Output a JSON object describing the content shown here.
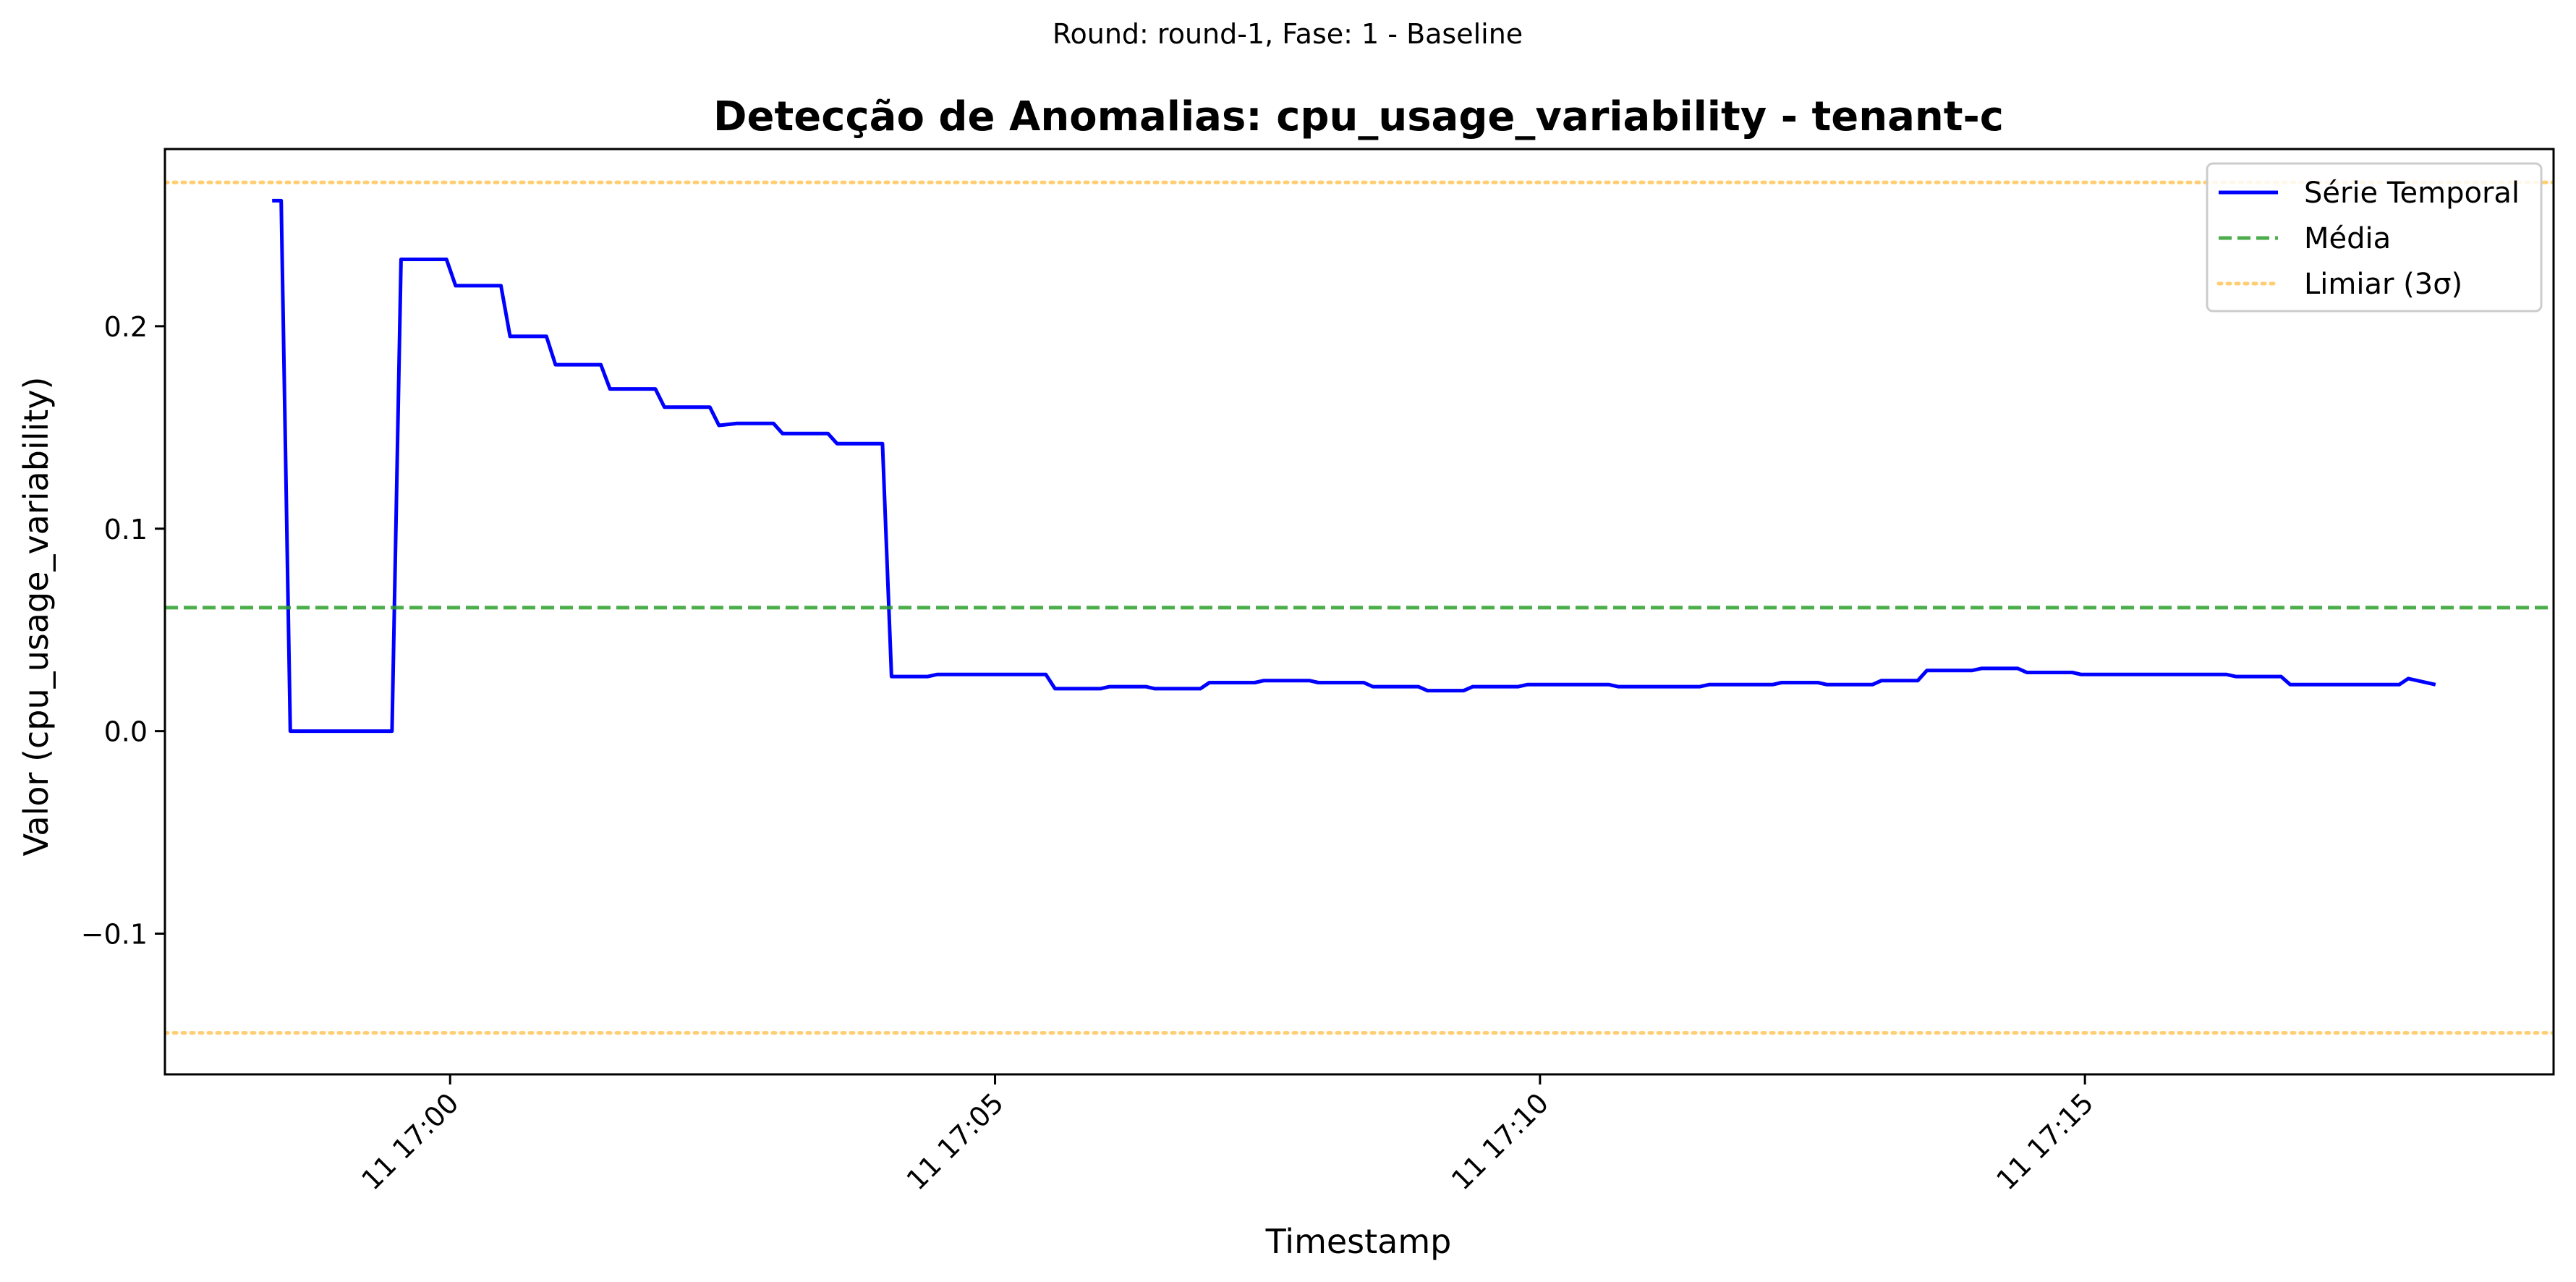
{
  "chart_data": {
    "type": "line",
    "suptitle": "Round: round-1, Fase: 1 - Baseline",
    "title": "Detecção de Anomalias: cpu_usage_variability - tenant-c",
    "xlabel": "Timestamp",
    "ylabel": "Valor (cpu_usage_variability)",
    "x_unit": "HH:MM:SS",
    "xlim": [
      "16:57:23",
      "17:19:18"
    ],
    "ylim": [
      -0.1695,
      0.2875
    ],
    "xticks": [
      {
        "value": "17:00:00",
        "label": "11 17:00"
      },
      {
        "value": "17:05:00",
        "label": "11 17:05"
      },
      {
        "value": "17:10:00",
        "label": "11 17:10"
      },
      {
        "value": "17:15:00",
        "label": "11 17:15"
      }
    ],
    "yticks": [
      {
        "value": -0.1,
        "label": "−0.1"
      },
      {
        "value": 0.0,
        "label": "0.0"
      },
      {
        "value": 0.1,
        "label": "0.1"
      },
      {
        "value": 0.2,
        "label": "0.2"
      }
    ],
    "legend_position": "upper-right",
    "grid": false,
    "series": [
      {
        "name": "Série Temporal",
        "style": "solid",
        "color": "#0000ff",
        "x": [
          "16:58:22",
          "16:58:27",
          "16:58:32",
          "16:59:23",
          "16:59:28",
          "16:59:33",
          "16:59:58",
          "17:00:03",
          "17:00:28",
          "17:00:33",
          "17:00:53",
          "17:00:58",
          "17:01:23",
          "17:01:28",
          "17:01:53",
          "17:01:58",
          "17:02:23",
          "17:02:28",
          "17:02:38",
          "17:02:43",
          "17:02:58",
          "17:03:03",
          "17:03:28",
          "17:03:33",
          "17:03:58",
          "17:04:03",
          "17:04:23",
          "17:04:28",
          "17:05:28",
          "17:05:33",
          "17:05:58",
          "17:06:03",
          "17:06:23",
          "17:06:28",
          "17:06:53",
          "17:06:58",
          "17:07:23",
          "17:07:28",
          "17:07:53",
          "17:07:58",
          "17:08:23",
          "17:08:28",
          "17:08:53",
          "17:08:58",
          "17:09:18",
          "17:09:23",
          "17:09:48",
          "17:09:53",
          "17:10:38",
          "17:10:43",
          "17:11:28",
          "17:11:33",
          "17:12:08",
          "17:12:13",
          "17:12:33",
          "17:12:38",
          "17:13:03",
          "17:13:08",
          "17:13:28",
          "17:13:33",
          "17:13:58",
          "17:14:03",
          "17:14:23",
          "17:14:28",
          "17:14:53",
          "17:14:58",
          "17:16:18",
          "17:16:23",
          "17:16:48",
          "17:16:53",
          "17:17:23",
          "17:17:28",
          "17:17:53",
          "17:17:58",
          "17:18:13"
        ],
        "values": [
          0.262,
          0.262,
          0.0,
          0.0,
          0.0,
          0.233,
          0.233,
          0.22,
          0.22,
          0.195,
          0.195,
          0.181,
          0.181,
          0.169,
          0.169,
          0.16,
          0.16,
          0.151,
          0.152,
          0.152,
          0.152,
          0.147,
          0.147,
          0.142,
          0.142,
          0.027,
          0.027,
          0.028,
          0.028,
          0.021,
          0.021,
          0.022,
          0.022,
          0.021,
          0.021,
          0.024,
          0.024,
          0.025,
          0.025,
          0.024,
          0.024,
          0.022,
          0.022,
          0.02,
          0.02,
          0.022,
          0.022,
          0.023,
          0.023,
          0.022,
          0.022,
          0.023,
          0.023,
          0.024,
          0.024,
          0.023,
          0.023,
          0.025,
          0.025,
          0.03,
          0.03,
          0.031,
          0.031,
          0.029,
          0.029,
          0.028,
          0.028,
          0.027,
          0.027,
          0.023,
          0.023,
          0.023,
          0.023,
          0.026,
          0.023
        ]
      },
      {
        "name": "Média",
        "style": "dashed",
        "color": "#2ca02c",
        "y": 0.061
      },
      {
        "name": "Limiar (3σ)",
        "style": "dotted",
        "color": "#ffa500",
        "y_upper": 0.271,
        "y_lower": -0.149
      }
    ]
  }
}
